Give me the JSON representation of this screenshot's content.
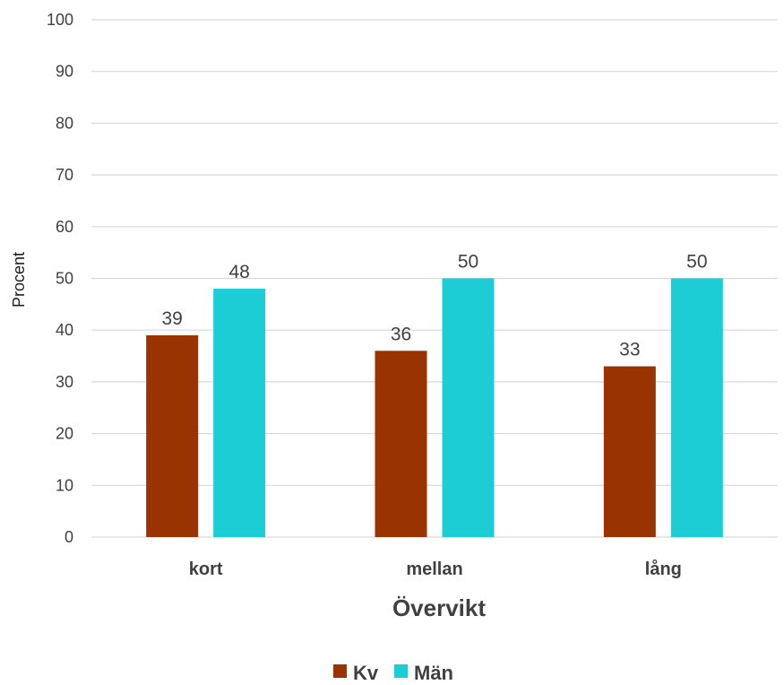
{
  "chart_data": {
    "type": "bar",
    "categories": [
      "kort",
      "mellan",
      "lång"
    ],
    "series": [
      {
        "name": "Kv",
        "values": [
          39,
          36,
          33
        ],
        "color": "#993300"
      },
      {
        "name": "Män",
        "values": [
          48,
          50,
          50
        ],
        "color": "#1ccdd6"
      }
    ],
    "xlabel": "Övervikt",
    "ylabel": "Procent",
    "ylim": [
      0,
      100
    ],
    "yticks": [
      0,
      10,
      20,
      30,
      40,
      50,
      60,
      70,
      80,
      90,
      100
    ],
    "grid": true,
    "legend_position": "bottom",
    "data_labels": true
  }
}
